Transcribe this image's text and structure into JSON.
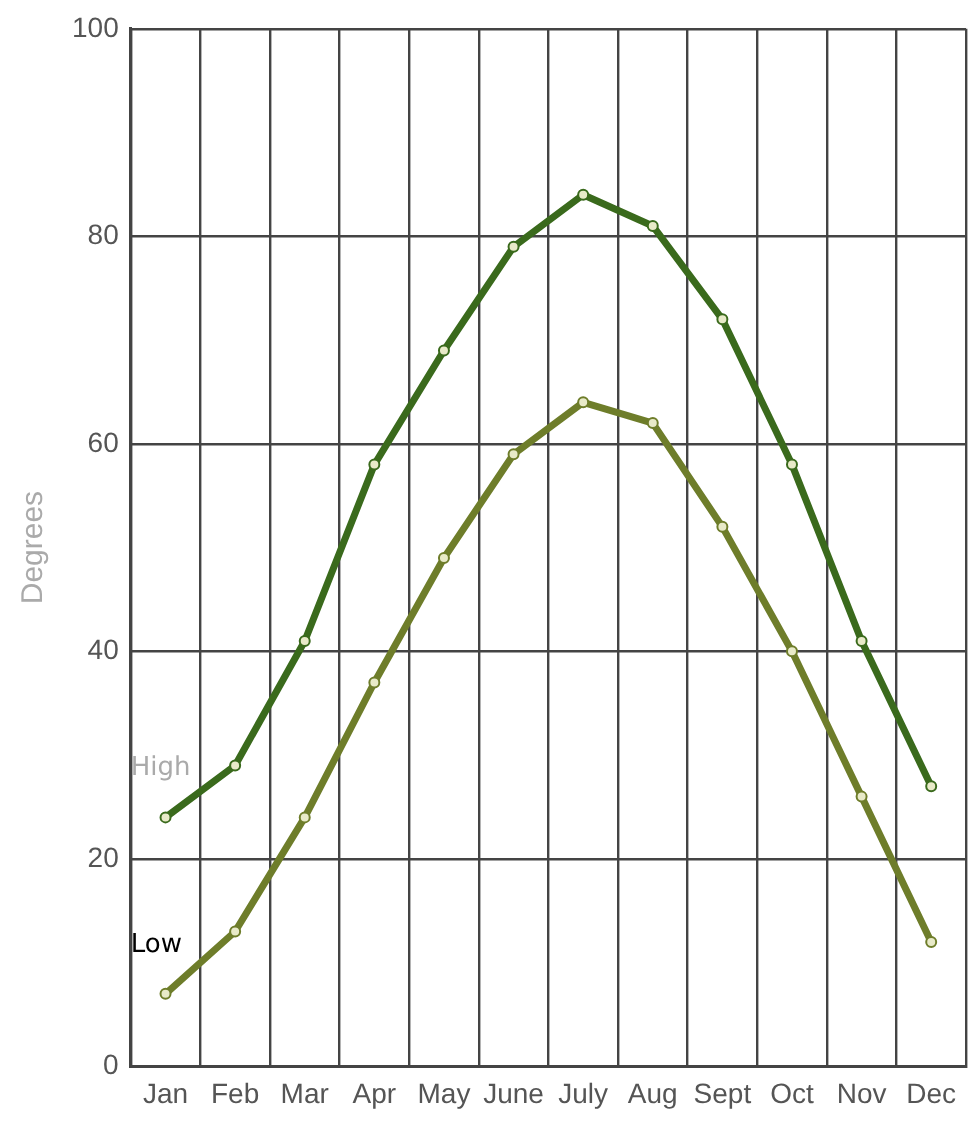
{
  "chart_data": {
    "type": "line",
    "ylabel": "Degrees",
    "categories": [
      "Jan",
      "Feb",
      "Mar",
      "Apr",
      "May",
      "June",
      "July",
      "Aug",
      "Sept",
      "Oct",
      "Nov",
      "Dec"
    ],
    "series": [
      {
        "name": "High",
        "color": "#3a6a1c",
        "values": [
          24,
          29,
          41,
          58,
          69,
          79,
          84,
          81,
          72,
          58,
          41,
          27
        ]
      },
      {
        "name": "Low",
        "color": "#6e7d2a",
        "values": [
          7,
          13,
          24,
          37,
          49,
          59,
          64,
          62,
          52,
          40,
          26,
          12
        ]
      }
    ],
    "ylim": [
      0,
      100
    ],
    "yticks": [
      0,
      20,
      40,
      60,
      80,
      100
    ],
    "grid": true,
    "legend": false,
    "marker": "circle",
    "line_style": "solid"
  }
}
